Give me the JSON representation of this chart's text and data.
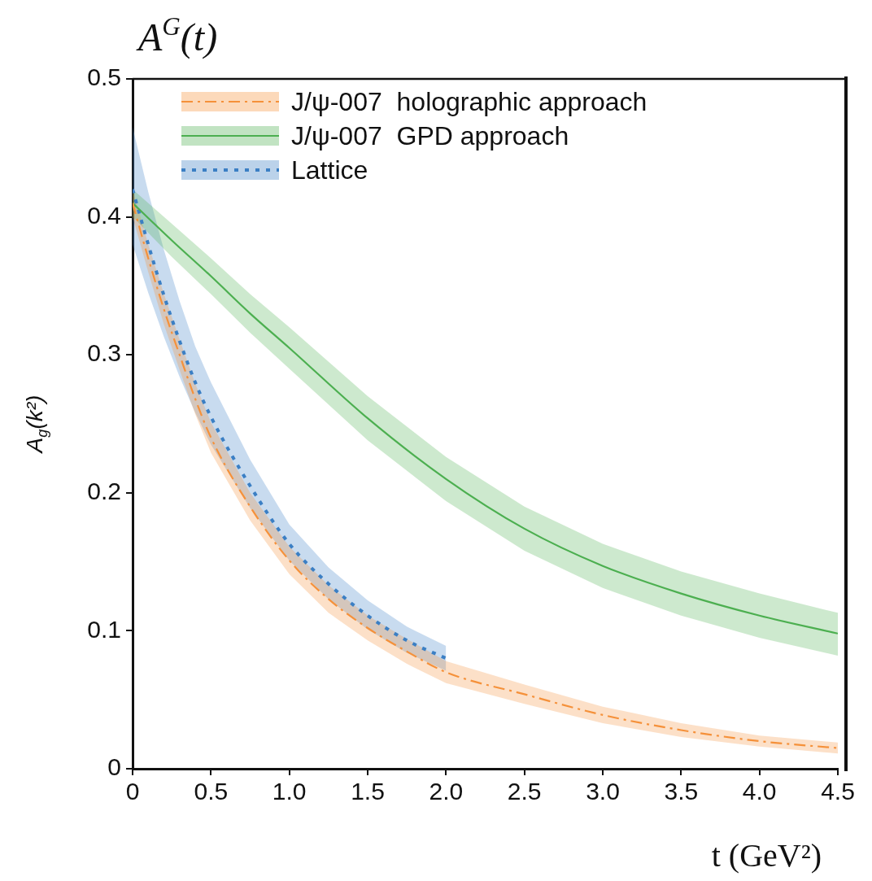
{
  "chart_data": {
    "type": "line",
    "title": "A$^{G}$(t)",
    "xlabel": "t (GeV²)",
    "ylabel": "A$_{g}$(k²)",
    "xlim": [
      0,
      4.5
    ],
    "ylim": [
      0,
      0.5
    ],
    "xticks": [
      0,
      0.5,
      {
        "value": 1,
        "label": "1.0"
      },
      1.5,
      {
        "value": 2,
        "label": "2.0"
      },
      2.5,
      {
        "value": 3,
        "label": "3.0"
      },
      3.5,
      {
        "value": 4,
        "label": "4.0"
      },
      4.5
    ],
    "yticks": [
      0,
      0.1,
      0.2,
      0.3,
      0.4,
      0.5
    ],
    "grid": false,
    "legend": "top left",
    "marker": "none",
    "series": [
      {
        "name": "J/ψ-007  holographic approach",
        "color": "#f5913a",
        "line_style": "dashdot",
        "x": [
          0,
          0.1,
          0.2,
          0.3,
          0.4,
          0.5,
          0.75,
          1,
          1.25,
          1.5,
          1.75,
          2,
          2.5,
          3,
          3.5,
          4,
          4.5
        ],
        "values": [
          0.41,
          0.37,
          0.333,
          0.3,
          0.268,
          0.24,
          0.19,
          0.151,
          0.123,
          0.102,
          0.085,
          0.07,
          0.054,
          0.039,
          0.028,
          0.02,
          0.015
        ],
        "lower": [
          0.4,
          0.36,
          0.322,
          0.289,
          0.257,
          0.229,
          0.18,
          0.141,
          0.113,
          0.093,
          0.076,
          0.062,
          0.047,
          0.033,
          0.023,
          0.016,
          0.011
        ],
        "upper": [
          0.42,
          0.38,
          0.344,
          0.311,
          0.279,
          0.251,
          0.2,
          0.161,
          0.133,
          0.111,
          0.094,
          0.078,
          0.061,
          0.045,
          0.033,
          0.024,
          0.019
        ]
      },
      {
        "name": "J/ψ-007  GPD approach",
        "color": "#4caf50",
        "line_style": "solid",
        "x": [
          0,
          0.25,
          0.5,
          0.75,
          1,
          1.5,
          2,
          2.5,
          3,
          3.5,
          4,
          4.5
        ],
        "values": [
          0.41,
          0.383,
          0.357,
          0.33,
          0.305,
          0.254,
          0.21,
          0.174,
          0.147,
          0.127,
          0.111,
          0.098
        ],
        "lower": [
          0.4,
          0.371,
          0.344,
          0.316,
          0.29,
          0.238,
          0.194,
          0.158,
          0.131,
          0.111,
          0.095,
          0.082
        ],
        "upper": [
          0.42,
          0.395,
          0.37,
          0.344,
          0.32,
          0.27,
          0.226,
          0.19,
          0.163,
          0.143,
          0.127,
          0.113
        ]
      },
      {
        "name": "Lattice",
        "color": "#3b7fc4",
        "line_style": "dotted",
        "x": [
          0,
          0.1,
          0.2,
          0.3,
          0.4,
          0.5,
          0.75,
          1,
          1.25,
          1.5,
          1.75,
          2
        ],
        "values": [
          0.42,
          0.38,
          0.343,
          0.31,
          0.28,
          0.255,
          0.205,
          0.163,
          0.134,
          0.111,
          0.093,
          0.08
        ],
        "lower": [
          0.38,
          0.345,
          0.313,
          0.284,
          0.258,
          0.235,
          0.189,
          0.151,
          0.123,
          0.101,
          0.084,
          0.071
        ],
        "upper": [
          0.465,
          0.418,
          0.376,
          0.339,
          0.306,
          0.28,
          0.224,
          0.177,
          0.146,
          0.122,
          0.103,
          0.089
        ]
      }
    ]
  }
}
